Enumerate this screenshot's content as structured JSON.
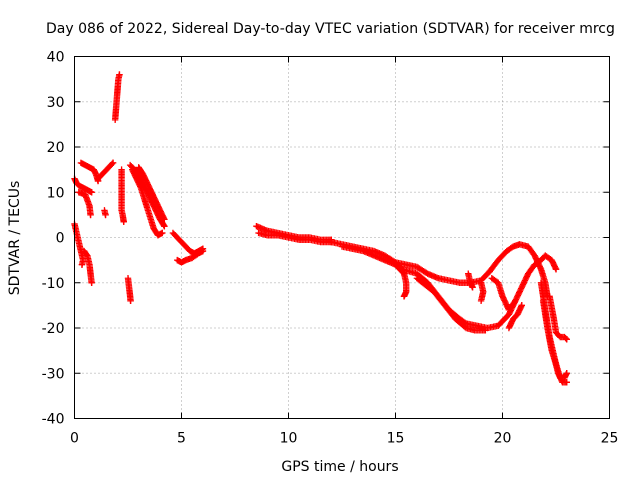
{
  "chart_data": {
    "type": "scatter",
    "title": "Day 086 of 2022, Sidereal Day-to-day VTEC variation (SDTVAR) for receiver mrcg",
    "xlabel": "GPS time / hours",
    "ylabel": "SDTVAR / TECUs",
    "xlim": [
      0,
      25
    ],
    "ylim": [
      -40,
      40
    ],
    "xticks": [
      "0",
      "5",
      "10",
      "15",
      "20",
      "25"
    ],
    "yticks": [
      "-40",
      "-30",
      "-20",
      "-10",
      "0",
      "10",
      "20",
      "30",
      "40"
    ],
    "grid": true,
    "marker": "+",
    "series": [
      {
        "name": "SDTVAR",
        "color": "#ff0000",
        "segments": [
          [
            [
              0.0,
              3
            ],
            [
              0.1,
              1
            ],
            [
              0.2,
              -1
            ],
            [
              0.3,
              -3
            ],
            [
              0.4,
              -5
            ],
            [
              0.35,
              -6
            ]
          ],
          [
            [
              0.45,
              -3
            ],
            [
              0.6,
              -4
            ],
            [
              0.7,
              -6
            ],
            [
              0.75,
              -8
            ],
            [
              0.8,
              -10
            ]
          ],
          [
            [
              0.0,
              13
            ],
            [
              0.1,
              12
            ],
            [
              0.2,
              11.5
            ],
            [
              0.4,
              11
            ],
            [
              0.6,
              10.5
            ],
            [
              0.8,
              10
            ]
          ],
          [
            [
              0.3,
              16.5
            ],
            [
              0.5,
              16
            ],
            [
              0.7,
              15.5
            ],
            [
              0.9,
              15
            ],
            [
              1.0,
              14
            ],
            [
              1.1,
              12.5
            ]
          ],
          [
            [
              0.2,
              10
            ],
            [
              0.5,
              9.5
            ],
            [
              0.7,
              7
            ],
            [
              0.75,
              5
            ]
          ],
          [
            [
              1.1,
              13
            ],
            [
              1.3,
              14
            ],
            [
              1.5,
              15
            ],
            [
              1.7,
              16
            ],
            [
              1.8,
              16.5
            ]
          ],
          [
            [
              1.4,
              6
            ],
            [
              1.45,
              5
            ]
          ],
          [
            [
              1.9,
              26
            ],
            [
              1.95,
              29
            ],
            [
              2.0,
              32
            ],
            [
              2.05,
              35
            ],
            [
              2.1,
              36
            ]
          ],
          [
            [
              2.2,
              15
            ],
            [
              2.2,
              6
            ],
            [
              2.25,
              5
            ],
            [
              2.3,
              3.5
            ]
          ],
          [
            [
              2.5,
              -9
            ],
            [
              2.55,
              -11
            ],
            [
              2.6,
              -13
            ],
            [
              2.62,
              -14
            ]
          ],
          [
            [
              2.6,
              16
            ],
            [
              2.8,
              15
            ],
            [
              3.0,
              14
            ],
            [
              3.2,
              12
            ],
            [
              3.4,
              10
            ],
            [
              3.6,
              8
            ],
            [
              3.8,
              6
            ],
            [
              4.0,
              4
            ],
            [
              4.2,
              2.5
            ]
          ],
          [
            [
              2.7,
              15
            ],
            [
              2.9,
              13
            ],
            [
              3.1,
              11
            ],
            [
              3.3,
              8
            ],
            [
              3.5,
              5
            ],
            [
              3.7,
              2
            ],
            [
              3.9,
              0.5
            ],
            [
              4.1,
              1
            ]
          ],
          [
            [
              3.0,
              15.5
            ],
            [
              3.2,
              14
            ],
            [
              3.4,
              12
            ],
            [
              3.6,
              10
            ],
            [
              3.8,
              8
            ],
            [
              4.0,
              6
            ],
            [
              4.2,
              4
            ]
          ],
          [
            [
              4.6,
              1
            ],
            [
              4.8,
              0
            ],
            [
              5.0,
              -1
            ],
            [
              5.2,
              -2
            ],
            [
              5.4,
              -3
            ],
            [
              5.6,
              -3.5
            ],
            [
              5.8,
              -3
            ],
            [
              6.0,
              -2.5
            ]
          ],
          [
            [
              4.8,
              -5
            ],
            [
              5.0,
              -5.5
            ],
            [
              5.2,
              -5
            ],
            [
              5.5,
              -4.5
            ],
            [
              5.8,
              -3.5
            ],
            [
              6.0,
              -3
            ]
          ],
          [
            [
              8.5,
              2.5
            ],
            [
              9.0,
              1.5
            ],
            [
              9.5,
              1
            ],
            [
              10.0,
              0.5
            ],
            [
              10.5,
              0
            ],
            [
              11.0,
              0
            ],
            [
              11.5,
              -0.5
            ],
            [
              12.0,
              -0.5
            ]
          ],
          [
            [
              8.6,
              1
            ],
            [
              9.0,
              0.5
            ],
            [
              9.5,
              0.5
            ],
            [
              10.0,
              0
            ],
            [
              10.5,
              -0.5
            ],
            [
              11.0,
              -0.5
            ],
            [
              11.5,
              -1
            ],
            [
              12.0,
              -1
            ]
          ],
          [
            [
              12.0,
              -1
            ],
            [
              12.5,
              -1.5
            ],
            [
              13.0,
              -2
            ],
            [
              13.5,
              -2.5
            ],
            [
              14.0,
              -3
            ],
            [
              14.5,
              -4
            ],
            [
              15.0,
              -5.5
            ],
            [
              15.3,
              -7
            ]
          ],
          [
            [
              12.5,
              -2
            ],
            [
              13.0,
              -2.5
            ],
            [
              13.5,
              -3
            ],
            [
              14.0,
              -4
            ],
            [
              14.5,
              -5
            ],
            [
              15.0,
              -6
            ],
            [
              15.4,
              -8
            ],
            [
              15.5,
              -10
            ],
            [
              15.5,
              -12
            ],
            [
              15.4,
              -13
            ]
          ],
          [
            [
              15.0,
              -5.5
            ],
            [
              15.5,
              -6
            ],
            [
              16.0,
              -6.5
            ],
            [
              16.5,
              -8
            ],
            [
              17.0,
              -9
            ],
            [
              17.5,
              -9.5
            ],
            [
              18.0,
              -10
            ],
            [
              18.5,
              -10
            ],
            [
              19.0,
              -9.5
            ],
            [
              19.4,
              -7.5
            ]
          ],
          [
            [
              15.3,
              -7
            ],
            [
              16.0,
              -8
            ],
            [
              16.5,
              -10
            ],
            [
              17.0,
              -13
            ],
            [
              17.5,
              -16
            ],
            [
              18.0,
              -18
            ],
            [
              18.3,
              -19
            ],
            [
              18.8,
              -19.5
            ],
            [
              19.3,
              -20
            ],
            [
              19.8,
              -19.5
            ],
            [
              20.3,
              -17
            ],
            [
              20.6,
              -14
            ]
          ],
          [
            [
              16.0,
              -9
            ],
            [
              16.8,
              -12
            ],
            [
              17.3,
              -15
            ],
            [
              17.8,
              -18
            ],
            [
              18.3,
              -20
            ],
            [
              18.7,
              -20.5
            ],
            [
              19.2,
              -20.5
            ]
          ],
          [
            [
              18.4,
              -8
            ],
            [
              18.5,
              -10
            ],
            [
              18.6,
              -11
            ]
          ],
          [
            [
              19.4,
              -7.5
            ],
            [
              19.8,
              -5
            ],
            [
              20.2,
              -3
            ],
            [
              20.5,
              -2
            ],
            [
              20.8,
              -1.5
            ],
            [
              21.2,
              -2
            ],
            [
              21.5,
              -4
            ],
            [
              21.8,
              -7
            ],
            [
              22.0,
              -10
            ],
            [
              22.1,
              -13
            ]
          ],
          [
            [
              19.5,
              -9
            ],
            [
              19.8,
              -10
            ],
            [
              20.0,
              -13
            ],
            [
              20.3,
              -16
            ],
            [
              20.6,
              -14
            ],
            [
              20.9,
              -11
            ],
            [
              21.2,
              -8
            ],
            [
              21.5,
              -6
            ],
            [
              21.8,
              -5
            ],
            [
              22.0,
              -4
            ],
            [
              22.3,
              -5
            ],
            [
              22.5,
              -7
            ]
          ],
          [
            [
              19.0,
              -14
            ],
            [
              19.1,
              -12
            ],
            [
              19.0,
              -10
            ]
          ],
          [
            [
              21.8,
              -10
            ],
            [
              22.0,
              -16
            ],
            [
              22.2,
              -22
            ],
            [
              22.4,
              -26
            ],
            [
              22.6,
              -30
            ],
            [
              22.8,
              -32
            ],
            [
              23.0,
              -32
            ]
          ],
          [
            [
              21.9,
              -14
            ],
            [
              22.1,
              -20
            ],
            [
              22.3,
              -25
            ],
            [
              22.5,
              -28
            ],
            [
              22.7,
              -31
            ],
            [
              22.9,
              -31
            ],
            [
              23.0,
              -30
            ]
          ],
          [
            [
              22.2,
              -13
            ],
            [
              22.4,
              -18
            ],
            [
              22.5,
              -21
            ],
            [
              22.7,
              -22
            ],
            [
              22.9,
              -22
            ],
            [
              23.0,
              -22.5
            ]
          ],
          [
            [
              20.3,
              -20
            ],
            [
              20.5,
              -18
            ],
            [
              20.7,
              -17
            ],
            [
              20.9,
              -15
            ]
          ]
        ]
      }
    ]
  }
}
